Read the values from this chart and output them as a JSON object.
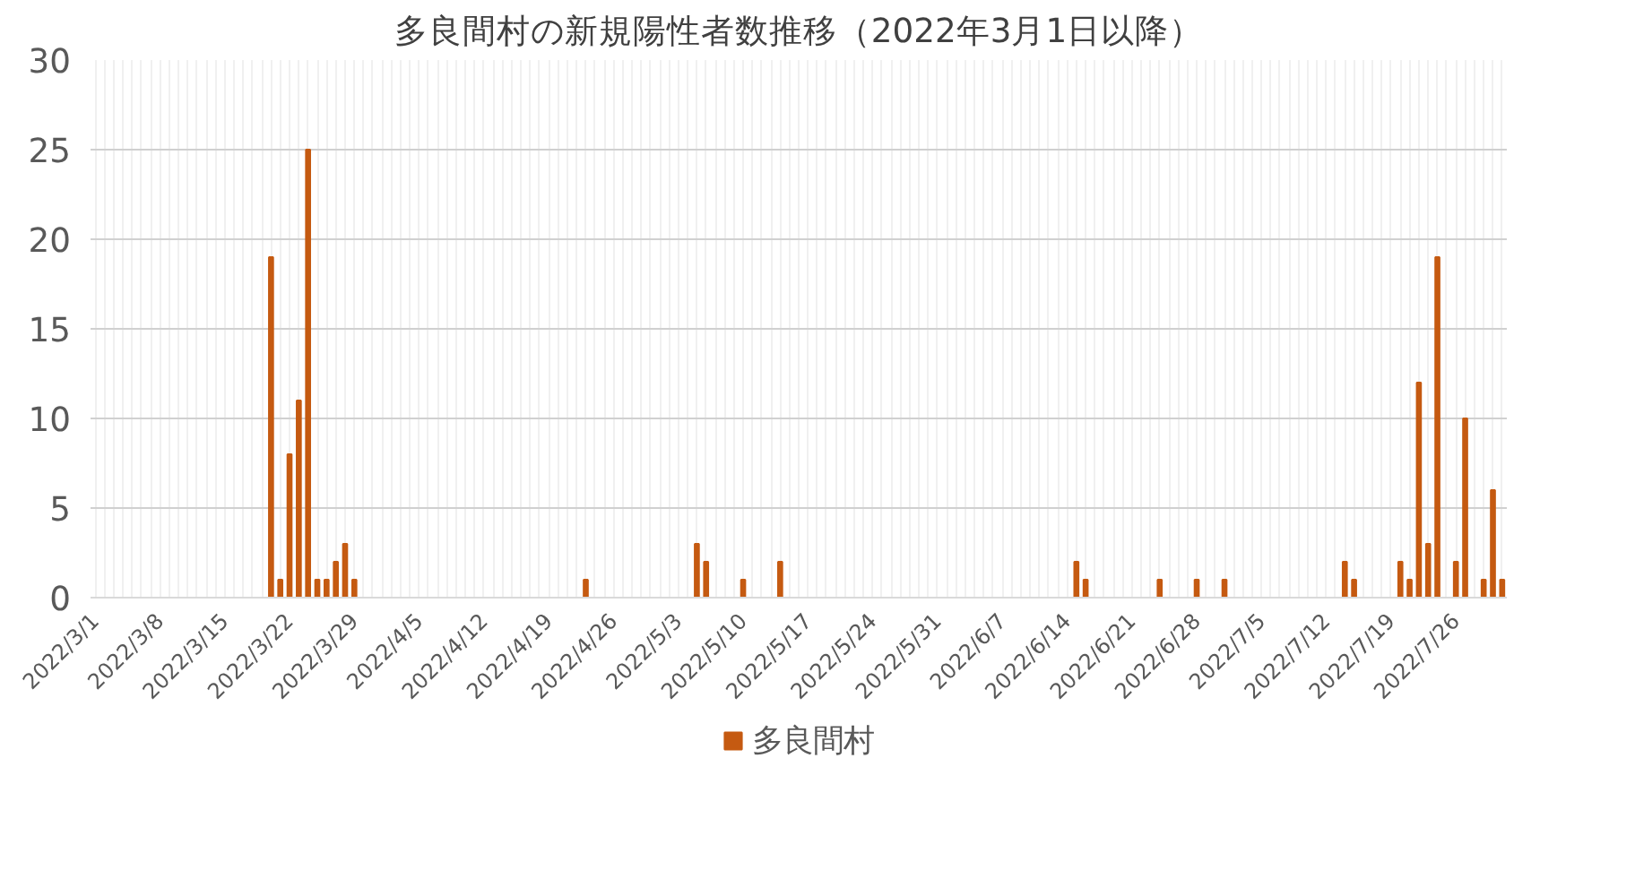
{
  "chart_data": {
    "type": "bar",
    "title": "多良間村の新規陽性者数推移（2022年3月1日以降）",
    "categories": [
      "2022/3/1",
      null,
      null,
      null,
      null,
      null,
      null,
      "2022/3/8",
      null,
      null,
      null,
      null,
      null,
      null,
      "2022/3/15",
      null,
      null,
      null,
      null,
      null,
      null,
      "2022/3/22",
      null,
      null,
      null,
      null,
      null,
      null,
      "2022/3/29",
      null,
      null,
      null,
      null,
      null,
      null,
      "2022/4/5",
      null,
      null,
      null,
      null,
      null,
      null,
      "2022/4/12",
      null,
      null,
      null,
      null,
      null,
      null,
      "2022/4/19",
      null,
      null,
      null,
      null,
      null,
      null,
      "2022/4/26",
      null,
      null,
      null,
      null,
      null,
      null,
      "2022/5/3",
      null,
      null,
      null,
      null,
      null,
      null,
      "2022/5/10",
      null,
      null,
      null,
      null,
      null,
      null,
      "2022/5/17",
      null,
      null,
      null,
      null,
      null,
      null,
      "2022/5/24",
      null,
      null,
      null,
      null,
      null,
      null,
      "2022/5/31",
      null,
      null,
      null,
      null,
      null,
      null,
      "2022/6/7",
      null,
      null,
      null,
      null,
      null,
      null,
      "2022/6/14",
      null,
      null,
      null,
      null,
      null,
      null,
      "2022/6/21",
      null,
      null,
      null,
      null,
      null,
      null,
      "2022/6/28",
      null,
      null,
      null,
      null,
      null,
      null,
      "2022/7/5",
      null,
      null,
      null,
      null,
      null,
      null,
      "2022/7/12",
      null,
      null,
      null,
      null,
      null,
      null,
      "2022/7/19",
      null,
      null,
      null,
      null,
      null,
      null,
      "2022/7/26",
      null,
      null,
      null,
      null,
      null
    ],
    "series": [
      {
        "name": "多良間村",
        "color": "#c55a11",
        "values": [
          0,
          0,
          0,
          0,
          0,
          0,
          0,
          0,
          0,
          0,
          0,
          0,
          0,
          0,
          0,
          0,
          0,
          0,
          0,
          19,
          1,
          8,
          11,
          25,
          1,
          1,
          2,
          3,
          1,
          0,
          0,
          0,
          0,
          0,
          0,
          0,
          0,
          0,
          0,
          0,
          0,
          0,
          0,
          0,
          0,
          0,
          0,
          0,
          0,
          0,
          0,
          0,
          0,
          1,
          0,
          0,
          0,
          0,
          0,
          0,
          0,
          0,
          0,
          0,
          0,
          3,
          2,
          0,
          0,
          0,
          1,
          0,
          0,
          0,
          2,
          0,
          0,
          0,
          0,
          0,
          0,
          0,
          0,
          0,
          0,
          0,
          0,
          0,
          0,
          0,
          0,
          0,
          0,
          0,
          0,
          0,
          0,
          0,
          0,
          0,
          0,
          0,
          0,
          0,
          0,
          0,
          2,
          1,
          0,
          0,
          0,
          0,
          0,
          0,
          0,
          1,
          0,
          0,
          0,
          1,
          0,
          0,
          1,
          0,
          0,
          0,
          0,
          0,
          0,
          0,
          0,
          0,
          0,
          0,
          0,
          2,
          1,
          0,
          0,
          0,
          0,
          2,
          1,
          12,
          3,
          19,
          0,
          2,
          10,
          0,
          1,
          6,
          1
        ]
      }
    ],
    "ylim": [
      0,
      30
    ],
    "yticks": [
      0,
      5,
      10,
      15,
      20,
      25,
      30
    ],
    "grid": true,
    "legend": "bottom"
  }
}
